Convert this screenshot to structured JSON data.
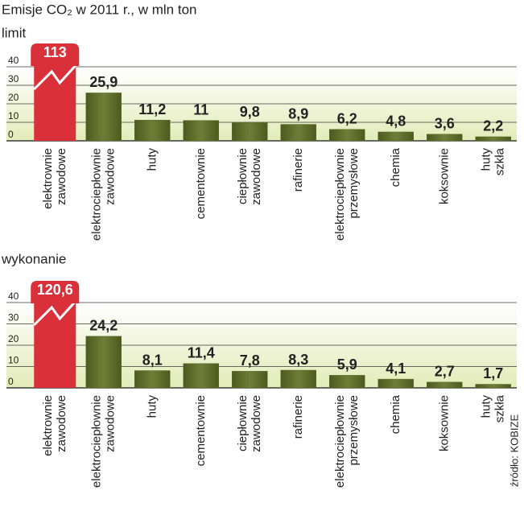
{
  "title": "Emisje CO₂ w 2011 r., w mln ton",
  "source": "źródło: KOBIZE",
  "chart_data": [
    {
      "type": "bar",
      "title": "limit",
      "categories": [
        "elektrownie\nzawodowe",
        "elektrociepłownie\nzawodowe",
        "huty",
        "cementownie",
        "ciepłownie\nzawodowe",
        "rafinerie",
        "elektrociepłownie\nprzemysłowe",
        "chemia",
        "koksownie",
        "huty\nszkła"
      ],
      "values": [
        113,
        25.9,
        11.2,
        11,
        9.8,
        8.9,
        6.2,
        4.8,
        3.6,
        2.2
      ],
      "value_labels": [
        "113",
        "25,9",
        "11,2",
        "11",
        "9,8",
        "8,9",
        "6,2",
        "4,8",
        "3,6",
        "2,2"
      ],
      "color": "#5f6d2c",
      "highlight_color": "#d9303a",
      "ylim": [
        0,
        40
      ],
      "yticks": [
        0,
        10,
        20,
        30,
        40
      ],
      "grid": true
    },
    {
      "type": "bar",
      "title": "wykonanie",
      "categories": [
        "elektrownie\nzawodowe",
        "elektrociepłownie\nzawodowe",
        "huty",
        "cementownie",
        "ciepłownie\nzawodowe",
        "rafinerie",
        "elektrociepłownie\nprzemysłowe",
        "chemia",
        "koksownie",
        "huty\nszkła"
      ],
      "values": [
        120.6,
        24.2,
        8.1,
        11.4,
        7.8,
        8.3,
        5.9,
        4.1,
        2.7,
        1.7
      ],
      "value_labels": [
        "120,6",
        "24,2",
        "8,1",
        "11,4",
        "7,8",
        "8,3",
        "5,9",
        "4,1",
        "2,7",
        "1,7"
      ],
      "color": "#5f6d2c",
      "highlight_color": "#d9303a",
      "ylim": [
        0,
        40
      ],
      "yticks": [
        0,
        10,
        20,
        30,
        40
      ],
      "grid": true
    }
  ]
}
